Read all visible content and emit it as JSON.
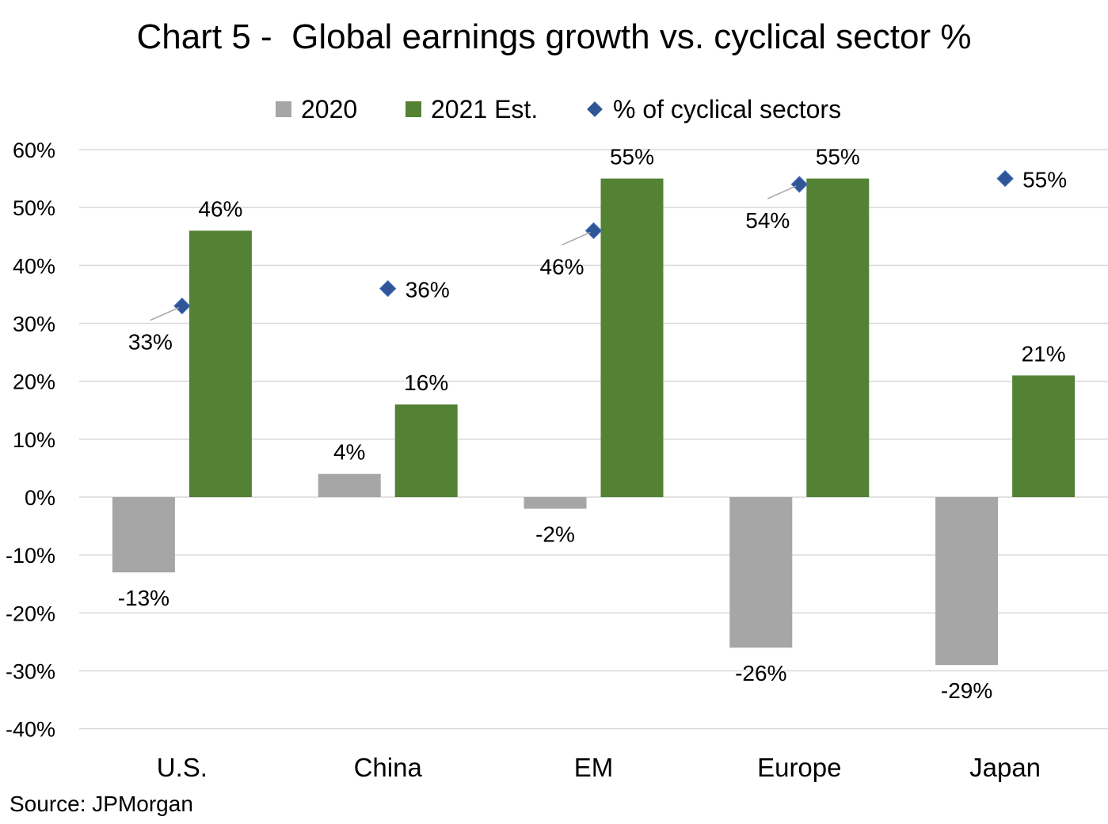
{
  "title": "Chart 5 -  Global earnings growth vs. cyclical sector %",
  "source": "Source: JPMorgan",
  "colors": {
    "2020": "#a6a6a6",
    "2021": "#548235",
    "cyclical": "#2f5597",
    "grid": "#d9d9d9"
  },
  "chart_data": {
    "type": "bar",
    "title": "Chart 5 -  Global earnings growth vs. cyclical sector %",
    "categories": [
      "U.S.",
      "China",
      "EM",
      "Europe",
      "Japan"
    ],
    "series": [
      {
        "name": "2020",
        "type": "bar",
        "values": [
          -13,
          4,
          -2,
          -26,
          -29
        ],
        "labels": [
          "-13%",
          "4%",
          "-2%",
          "-26%",
          "-29%"
        ]
      },
      {
        "name": "2021 Est.",
        "type": "bar",
        "values": [
          46,
          16,
          55,
          55,
          21
        ],
        "labels": [
          "46%",
          "16%",
          "55%",
          "55%",
          "21%"
        ]
      },
      {
        "name": "% of cyclical sectors",
        "type": "scatter",
        "marker": "diamond",
        "values": [
          33,
          36,
          46,
          54,
          55
        ],
        "labels": [
          "33%",
          "36%",
          "46%",
          "54%",
          "55%"
        ]
      }
    ],
    "ylim": [
      -40,
      60
    ],
    "yticks": [
      60,
      50,
      40,
      30,
      20,
      10,
      0,
      -10,
      -20,
      -30,
      -40
    ],
    "ytick_labels": [
      "60%",
      "50%",
      "40%",
      "30%",
      "20%",
      "10%",
      "0%",
      "-10%",
      "-20%",
      "-30%",
      "-40%"
    ],
    "grid": true,
    "legend_position": "top"
  }
}
